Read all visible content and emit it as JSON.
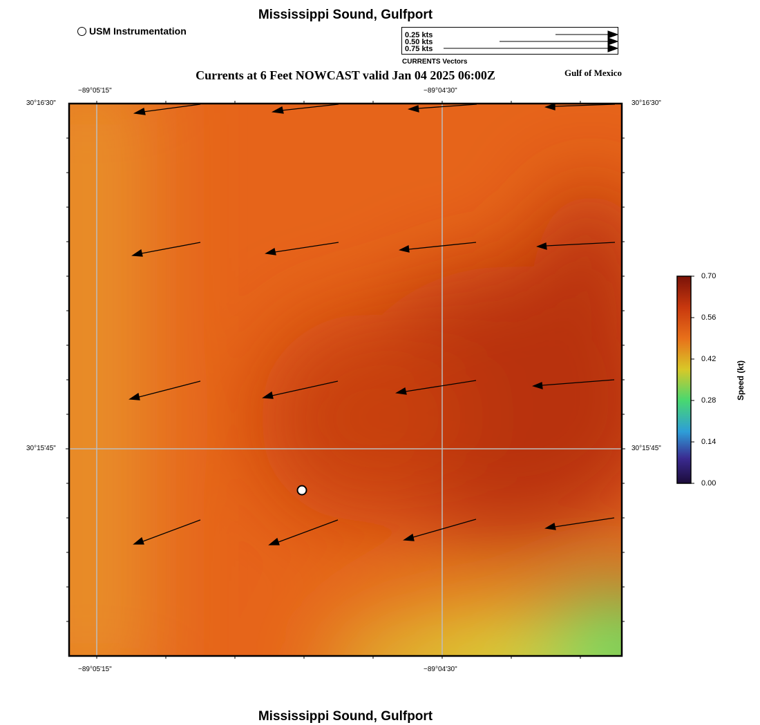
{
  "header": {
    "title": "Mississippi Sound, Gulfport",
    "subtitle": "Currents at 6 Feet NOWCAST valid Jan 04 2025 06:00Z",
    "region": "Gulf of Mexico"
  },
  "footer": {
    "title": "Mississippi Sound, Gulfport"
  },
  "legend": {
    "marker_label": "USM Instrumentation",
    "vector_scale": [
      "0.25 kts",
      "0.50 kts",
      "0.75 kts"
    ],
    "vector_title": "CURRENTS Vectors"
  },
  "map": {
    "lon_labels": [
      "−89°05'15\"",
      "−89°04'30\""
    ],
    "lat_labels": [
      "30°16'30\"",
      "30°15'45\""
    ],
    "station_marker": "USM Instrumentation"
  },
  "colorbar": {
    "title": "Speed (kt)",
    "ticks": [
      "0.70",
      "0.56",
      "0.42",
      "0.28",
      "0.14",
      "0.00"
    ],
    "colors": [
      "#7a1208",
      "#c8380e",
      "#e8701a",
      "#d8c828",
      "#48d870",
      "#2e9ed8",
      "#3a2a90",
      "#1c0c3a"
    ]
  },
  "colors": {
    "field_base": "#e6641a",
    "field_dark": "#b8300c",
    "field_light": "#e8902a",
    "field_yellow": "#d8dc38",
    "field_green": "#68e868"
  }
}
